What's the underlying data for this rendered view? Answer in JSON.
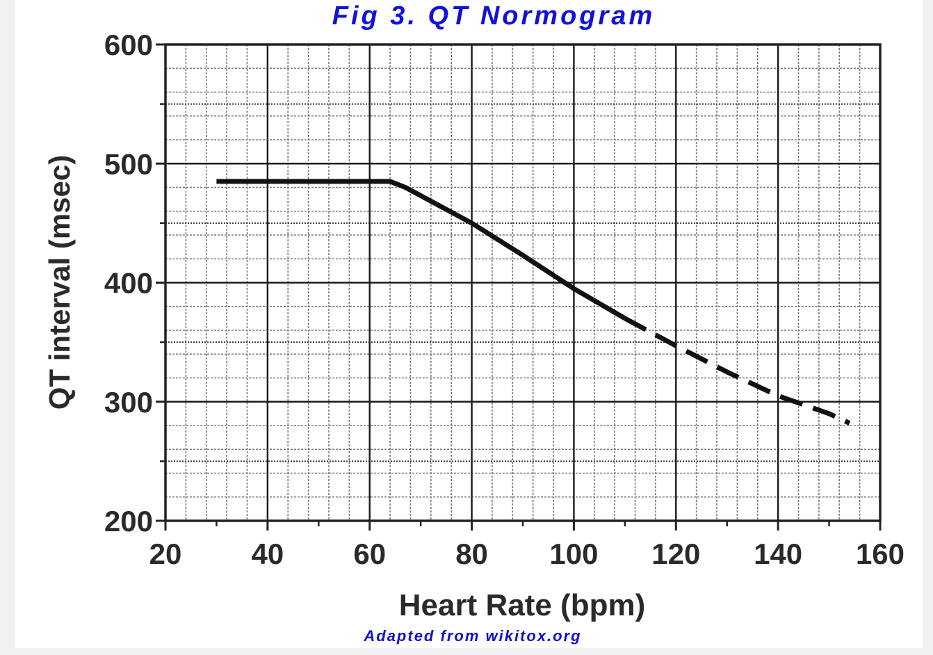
{
  "figure": {
    "title": "Fig 3. QT Normogram",
    "credit": "Adapted from wikitox.org"
  },
  "chart_data": {
    "type": "line",
    "xlabel": "Heart Rate (bpm)",
    "ylabel": "QT interval (msec)",
    "xlim": [
      20,
      160
    ],
    "ylim": [
      200,
      600
    ],
    "x_ticks": [
      20,
      40,
      60,
      80,
      100,
      120,
      140,
      160
    ],
    "y_ticks": [
      200,
      300,
      400,
      500,
      600
    ],
    "grid": true,
    "legend": "none",
    "series": [
      {
        "style": "solid",
        "points": [
          [
            30,
            485
          ],
          [
            64,
            485
          ],
          [
            67,
            480
          ],
          [
            80,
            450
          ],
          [
            90,
            423
          ],
          [
            100,
            395
          ],
          [
            110,
            370
          ]
        ]
      },
      {
        "style": "dashed",
        "points": [
          [
            110,
            370
          ],
          [
            120,
            347
          ],
          [
            130,
            325
          ],
          [
            140,
            305
          ],
          [
            150,
            290
          ],
          [
            154,
            282
          ]
        ]
      }
    ],
    "colors": {
      "line": "#111111",
      "grid_major": "#1a1a1a",
      "grid_minor": "#7a7a7a",
      "title": "#1111dd"
    }
  }
}
